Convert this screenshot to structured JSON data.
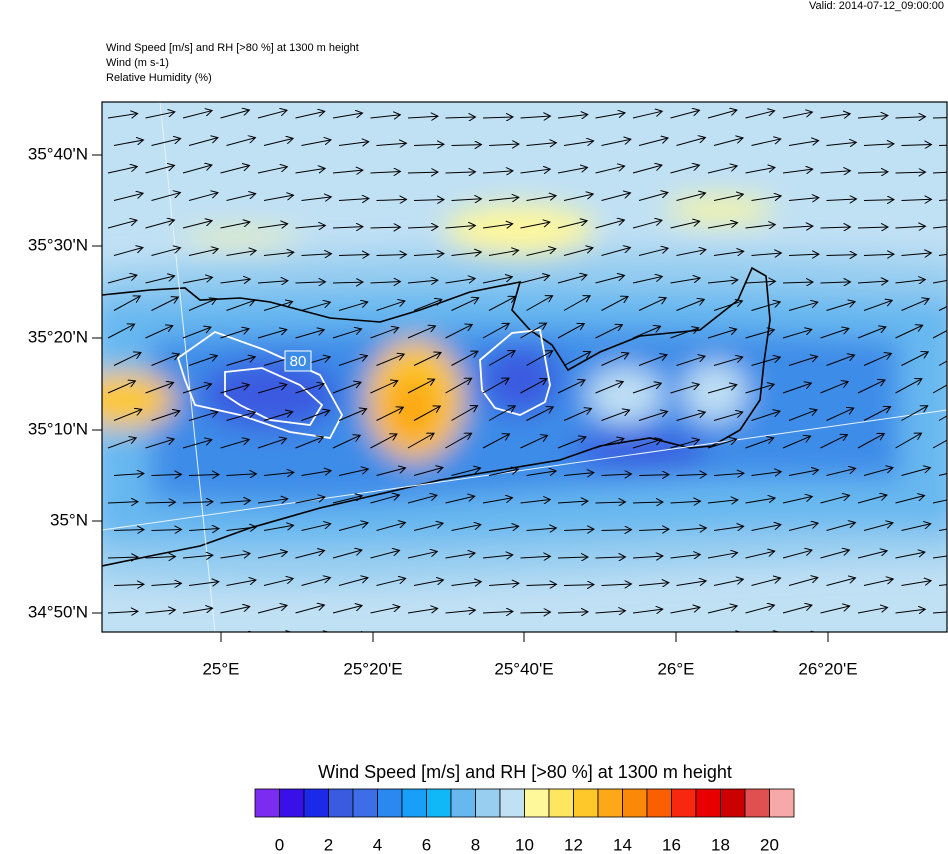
{
  "header": {
    "valid": "Valid: 2014-07-12_09:00:00",
    "lines": [
      "Wind Speed [m/s] and RH [>80 %] at 1300 m height",
      "Wind   (m s-1)",
      "Relative Humidity   (%)"
    ]
  },
  "map": {
    "lat_labels": [
      "35°40'N",
      "35°30'N",
      "35°20'N",
      "35°10'N",
      "35°N",
      "34°50'N"
    ],
    "lon_labels": [
      "25°E",
      "25°20'E",
      "25°40'E",
      "26°E",
      "26°20'E"
    ],
    "contour_label": "80"
  },
  "colorbar": {
    "title": "Wind Speed [m/s] and RH [>80 %] at 1300 m height",
    "labels": [
      0,
      2,
      4,
      6,
      8,
      10,
      12,
      14,
      16,
      18,
      20
    ],
    "colors": [
      "#7c2cf0",
      "#3a10e8",
      "#1a2ae8",
      "#3a5ae0",
      "#3c6ee8",
      "#2a88f0",
      "#18a0f8",
      "#10b8f8",
      "#68b8f0",
      "#98cef0",
      "#c0e0f4",
      "#fff89a",
      "#fee660",
      "#fec82a",
      "#fca818",
      "#fc8808",
      "#fb6000",
      "#f82810",
      "#e80000",
      "#cc0000",
      "#e05050",
      "#f8a8a8"
    ]
  }
}
